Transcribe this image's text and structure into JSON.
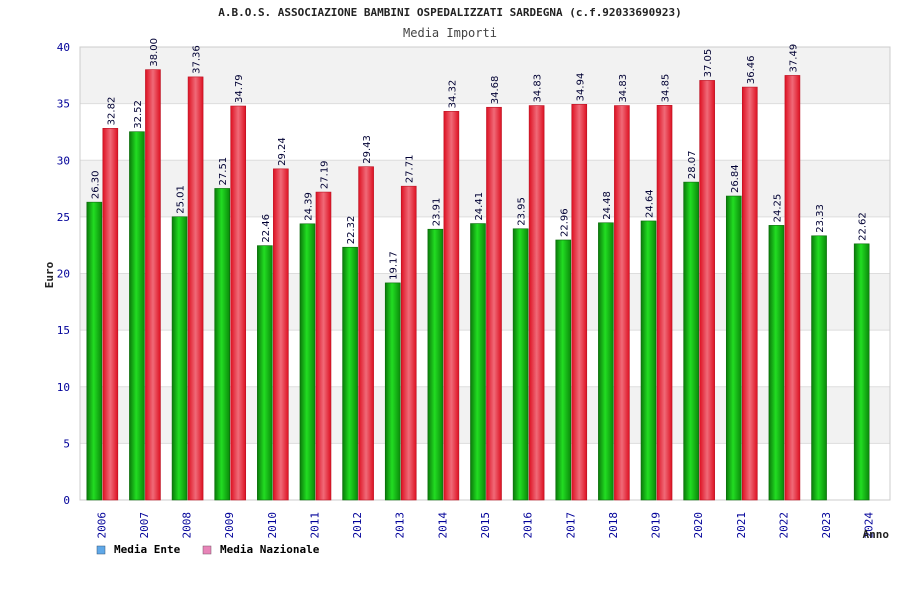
{
  "chart_data": {
    "type": "bar",
    "title": "A.B.O.S. ASSOCIAZIONE BAMBINI OSPEDALIZZATI SARDEGNA (c.f.92033690923)",
    "subtitle": "Media Importi",
    "xlabel": "Anno",
    "ylabel": "Euro",
    "ylim": [
      0,
      40
    ],
    "yticks": [
      0,
      5,
      10,
      15,
      20,
      25,
      30,
      35,
      40
    ],
    "grid": true,
    "categories": [
      "2006",
      "2007",
      "2008",
      "2009",
      "2010",
      "2011",
      "2012",
      "2013",
      "2014",
      "2015",
      "2016",
      "2017",
      "2018",
      "2019",
      "2020",
      "2021",
      "2022",
      "2023",
      "2024"
    ],
    "series": [
      {
        "name": "Media Ente",
        "color": "#11aa11",
        "legend_color": "#5fa8e8",
        "values": [
          26.3,
          32.52,
          25.01,
          27.51,
          22.46,
          24.39,
          22.32,
          19.17,
          23.91,
          24.41,
          23.95,
          22.96,
          24.48,
          24.64,
          28.07,
          26.84,
          24.25,
          23.33,
          22.62
        ],
        "labels": [
          "26.30",
          "32.52",
          "25.01",
          "27.51",
          "22.46",
          "24.39",
          "22.32",
          "19.17",
          "23.91",
          "24.41",
          "23.95",
          "22.96",
          "24.48",
          "24.64",
          "28.07",
          "26.84",
          "24.25",
          "23.33",
          "22.62"
        ]
      },
      {
        "name": "Media Nazionale",
        "color": "#ee2233",
        "legend_color": "#e884b8",
        "values": [
          32.82,
          38.0,
          37.36,
          34.79,
          29.24,
          27.19,
          29.43,
          27.71,
          34.32,
          34.68,
          34.83,
          34.94,
          34.83,
          34.85,
          37.05,
          36.46,
          37.49,
          null,
          null
        ],
        "labels": [
          "32.82",
          "38.00",
          "37.36",
          "34.79",
          "29.24",
          "27.19",
          "29.43",
          "27.71",
          "34.32",
          "34.68",
          "34.83",
          "34.94",
          "34.83",
          "34.85",
          "37.05",
          "36.46",
          "37.49",
          null,
          null
        ]
      }
    ],
    "legend_position": "bottom-left"
  }
}
